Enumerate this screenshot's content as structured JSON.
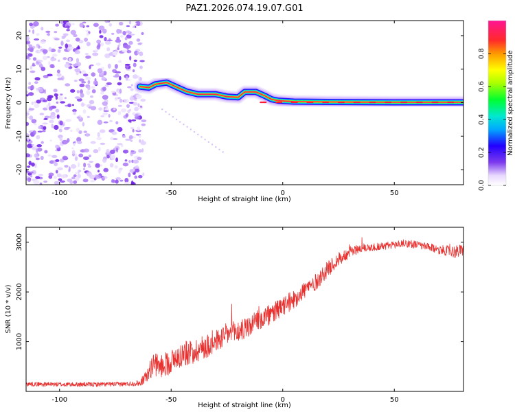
{
  "title": "PAZ1.2026.074.19.07.G01",
  "colors": {
    "snr_line": "#e8312f",
    "track_core": "#ff2244",
    "axes": "#000000",
    "background": "#ffffff"
  },
  "chart_data": [
    {
      "type": "heatmap",
      "name": "spectrogram",
      "xlabel": "Height of straight line (km)",
      "ylabel": "Frequency (Hz)",
      "xlim": [
        -115,
        81
      ],
      "ylim": [
        -24.5,
        24.5
      ],
      "xticks": [
        -100,
        -50,
        0,
        50
      ],
      "yticks": [
        -20,
        -10,
        0,
        10,
        20
      ],
      "grid": false,
      "noise_region_x": [
        -115,
        -62
      ],
      "track": [
        {
          "x": -64,
          "y": 4.8
        },
        {
          "x": -60,
          "y": 4.5
        },
        {
          "x": -57,
          "y": 5.5
        },
        {
          "x": -52,
          "y": 6.0
        },
        {
          "x": -47,
          "y": 4.5
        },
        {
          "x": -43,
          "y": 3.3
        },
        {
          "x": -38,
          "y": 2.5
        },
        {
          "x": -30,
          "y": 2.5
        },
        {
          "x": -25,
          "y": 1.8
        },
        {
          "x": -20,
          "y": 1.6
        },
        {
          "x": -17,
          "y": 3.2
        },
        {
          "x": -12,
          "y": 3.2
        },
        {
          "x": -8,
          "y": 2.0
        },
        {
          "x": -5,
          "y": 1.0
        },
        {
          "x": -2,
          "y": 0.6
        },
        {
          "x": 5,
          "y": 0.3
        },
        {
          "x": 20,
          "y": 0.2
        },
        {
          "x": 50,
          "y": 0.1
        },
        {
          "x": 81,
          "y": 0.1
        }
      ],
      "colorbar": {
        "label": "Normalized spectral amplitude",
        "range": [
          0.0,
          1.0
        ],
        "ticks": [
          "0.0",
          "0.2",
          "0.4",
          "0.6",
          "0.8"
        ],
        "colormap": "rainbow"
      }
    },
    {
      "type": "line",
      "name": "snr",
      "xlabel": "Height of straight line (km)",
      "ylabel": "SNR (10 * v/v)",
      "xlim": [
        -115,
        81
      ],
      "ylim": [
        0,
        3300
      ],
      "xticks": [
        -100,
        -50,
        0,
        50
      ],
      "yticks": [
        1000,
        2000,
        3000
      ],
      "grid": false,
      "series": [
        {
          "name": "SNR",
          "x": [
            -115,
            -100,
            -85,
            -70,
            -64,
            -61,
            -58,
            -55,
            -50,
            -45,
            -40,
            -35,
            -30,
            -25,
            -20,
            -15,
            -10,
            -5,
            0,
            5,
            10,
            15,
            20,
            25,
            30,
            35,
            40,
            45,
            50,
            55,
            60,
            65,
            70,
            75,
            78,
            81
          ],
          "values": [
            150,
            140,
            140,
            150,
            170,
            300,
            550,
            500,
            600,
            750,
            800,
            900,
            1000,
            1150,
            1200,
            1300,
            1450,
            1550,
            1700,
            1850,
            2050,
            2200,
            2450,
            2650,
            2800,
            2880,
            2900,
            2920,
            2950,
            2980,
            2950,
            2900,
            2850,
            2820,
            2800,
            2850
          ],
          "noise_amplitude": [
            45,
            45,
            45,
            45,
            60,
            140,
            220,
            240,
            250,
            250,
            250,
            250,
            240,
            230,
            230,
            220,
            220,
            210,
            200,
            190,
            180,
            170,
            160,
            140,
            110,
            90,
            80,
            80,
            80,
            80,
            80,
            80,
            90,
            110,
            140,
            120
          ]
        }
      ]
    }
  ]
}
